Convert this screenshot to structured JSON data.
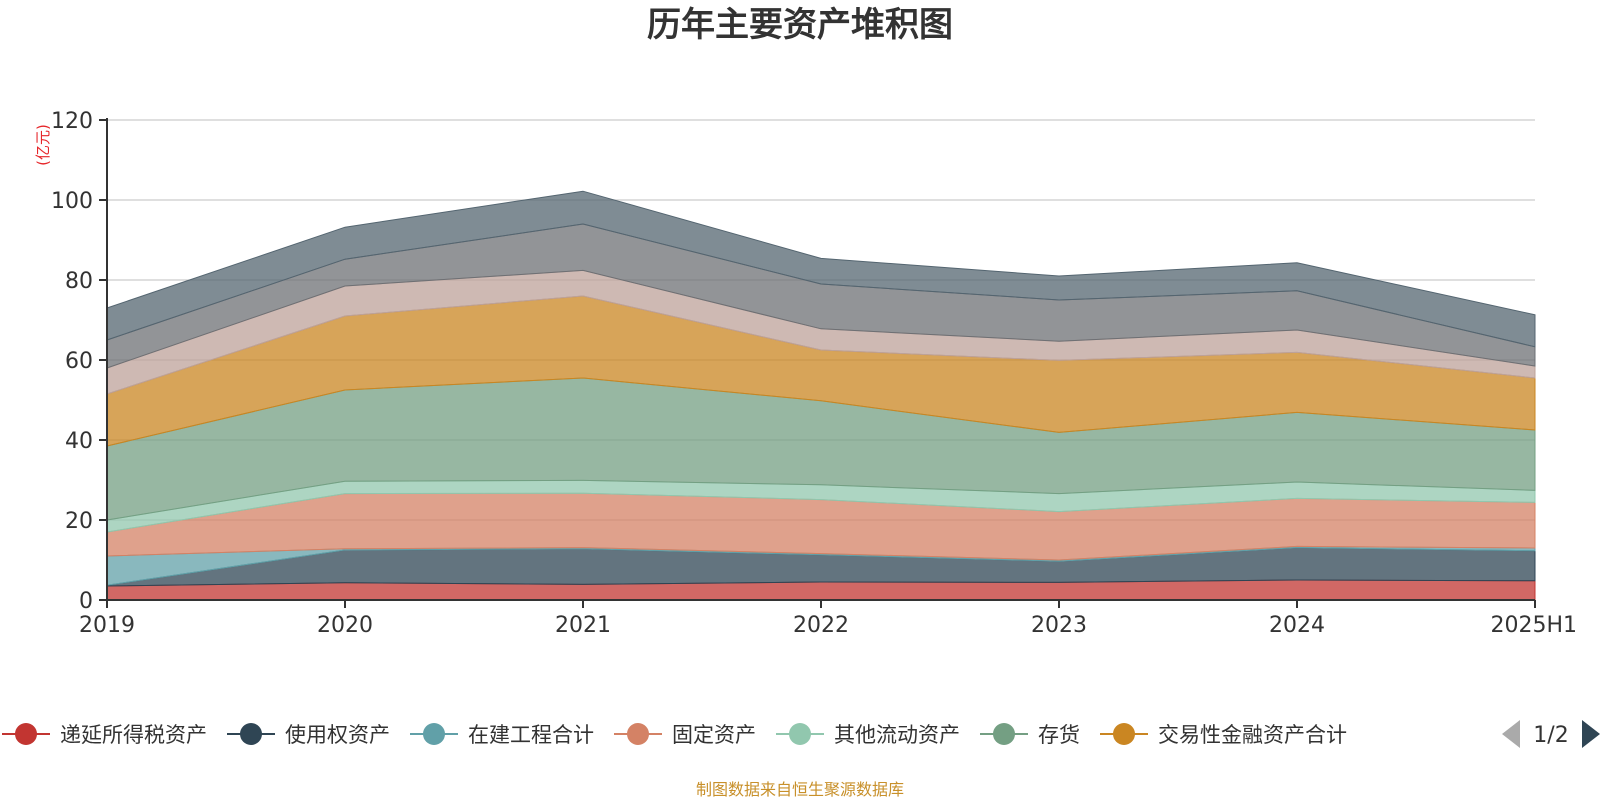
{
  "chart_data": {
    "type": "area",
    "stacked": true,
    "title": "历年主要资产堆积图",
    "unit_label": "(亿元)",
    "categories": [
      "2019",
      "2020",
      "2021",
      "2022",
      "2023",
      "2024",
      "2025H1"
    ],
    "ylim": [
      0,
      120
    ],
    "yticks": [
      0,
      20,
      40,
      60,
      80,
      100,
      120
    ],
    "grid": true,
    "legend_position": "bottom",
    "legend_page": "1/2",
    "series": [
      {
        "name": "递延所得税资产",
        "color": "#c23531",
        "legend": true,
        "values": [
          3.5,
          4.3,
          3.9,
          4.5,
          4.4,
          5.0,
          4.8
        ]
      },
      {
        "name": "使用权资产",
        "color": "#2f4554",
        "legend": true,
        "values": [
          0.2,
          8.2,
          8.9,
          6.8,
          5.3,
          8.1,
          7.5
        ]
      },
      {
        "name": "在建工程合计",
        "color": "#61a0a8",
        "legend": true,
        "values": [
          7.3,
          0.3,
          0.3,
          0.3,
          0.3,
          0.3,
          0.7
        ]
      },
      {
        "name": "固定资产",
        "color": "#d48265",
        "legend": true,
        "values": [
          6.0,
          13.8,
          13.6,
          13.5,
          12.1,
          12.0,
          11.4
        ]
      },
      {
        "name": "其他流动资产",
        "color": "#91c7ae",
        "legend": true,
        "values": [
          3.0,
          3.1,
          3.2,
          3.7,
          4.5,
          4.1,
          3.0
        ]
      },
      {
        "name": "存货",
        "color": "#749f83",
        "legend": true,
        "values": [
          18.5,
          22.8,
          25.6,
          21.0,
          15.3,
          17.4,
          15.1
        ]
      },
      {
        "name": "交易性金融资产合计",
        "color": "#ca8622",
        "legend": true,
        "values": [
          13.0,
          18.5,
          20.5,
          12.7,
          18.0,
          15.0,
          13.0
        ]
      },
      {
        "name": "",
        "color": "#bda29a",
        "legend": false,
        "values": [
          6.5,
          7.5,
          6.4,
          5.3,
          4.8,
          5.6,
          3.0
        ]
      },
      {
        "name": "",
        "color": "#6e7074",
        "legend": false,
        "values": [
          7.0,
          6.7,
          11.6,
          11.2,
          10.3,
          9.8,
          4.8
        ]
      },
      {
        "name": "",
        "color": "#546570",
        "legend": false,
        "values": [
          8.0,
          8.0,
          8.2,
          6.4,
          6.0,
          7.0,
          8.0
        ]
      }
    ]
  },
  "footer": {
    "source": "制图数据来自恒生聚源数据库"
  }
}
